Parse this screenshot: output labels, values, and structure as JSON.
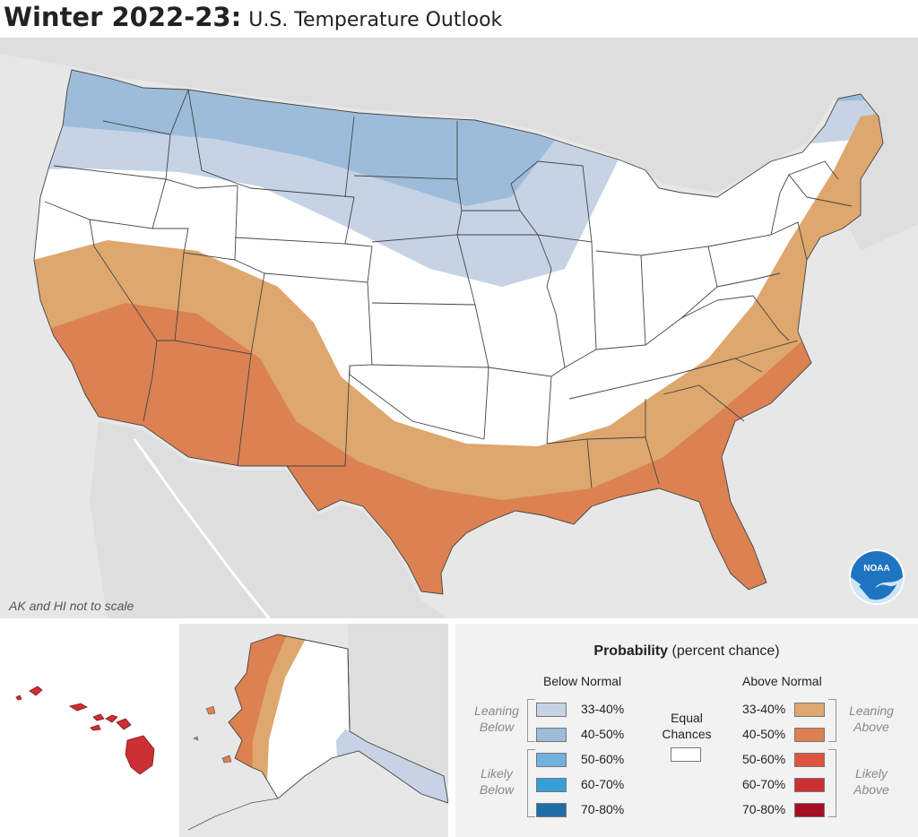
{
  "title": {
    "main": "Winter 2022-23:",
    "sub": "U.S. Temperature Outlook"
  },
  "map": {
    "note": "AK and HI not to scale",
    "logo_text": "NOAA"
  },
  "legend": {
    "title_bold": "Probability",
    "title_rest": "(percent chance)",
    "below_header": "Below Normal",
    "above_header": "Above Normal",
    "equal_label_1": "Equal",
    "equal_label_2": "Chances",
    "equal_color": "#ffffff",
    "leaning_below_1": "Leaning",
    "leaning_below_2": "Below",
    "likely_below_1": "Likely",
    "likely_below_2": "Below",
    "leaning_above_1": "Leaning",
    "leaning_above_2": "Above",
    "likely_above_1": "Likely",
    "likely_above_2": "Above",
    "below": [
      {
        "label": "33-40%",
        "color": "#c5d3e5"
      },
      {
        "label": "40-50%",
        "color": "#9dbcda"
      },
      {
        "label": "50-60%",
        "color": "#71b1df"
      },
      {
        "label": "60-70%",
        "color": "#379fd8"
      },
      {
        "label": "70-80%",
        "color": "#1d6ea6"
      }
    ],
    "above": [
      {
        "label": "33-40%",
        "color": "#dda76e"
      },
      {
        "label": "40-50%",
        "color": "#dc8152"
      },
      {
        "label": "50-60%",
        "color": "#e0533d"
      },
      {
        "label": "60-70%",
        "color": "#cc2f34"
      },
      {
        "label": "70-80%",
        "color": "#a50f23"
      }
    ]
  }
}
